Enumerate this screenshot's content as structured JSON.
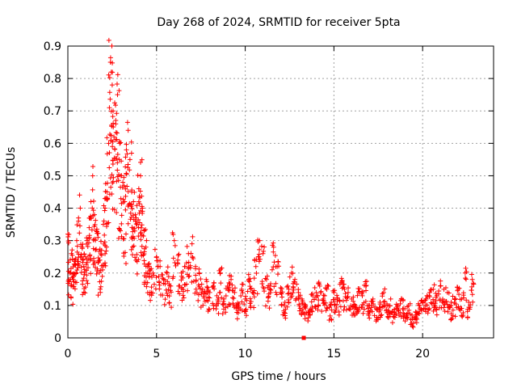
{
  "chart_data": {
    "type": "scatter",
    "title": "Day 268 of 2024, SRMTID for receiver 5pta",
    "xlabel": "GPS time / hours",
    "ylabel": "SRMTID / TECUs",
    "xlim": [
      0,
      24
    ],
    "ylim": [
      0,
      0.9
    ],
    "xticks": [
      0,
      5,
      10,
      15,
      20
    ],
    "xtick_labels": [
      "0",
      "5",
      "10",
      "15",
      "20"
    ],
    "yticks": [
      0,
      0.1,
      0.2,
      0.3,
      0.4,
      0.5,
      0.6,
      0.7,
      0.8,
      0.9
    ],
    "ytick_labels": [
      "0",
      "0.1",
      "0.2",
      "0.3",
      "0.4",
      "0.5",
      "0.6",
      "0.7",
      "0.8",
      "0.9"
    ],
    "grid": true,
    "marker": "plus",
    "marker_color": "#ff0000",
    "series": [
      {
        "name": "SRMTID",
        "x": [
          0.0,
          0.1,
          0.2,
          0.3,
          0.4,
          0.5,
          0.6,
          0.7,
          0.8,
          0.9,
          1.0,
          1.1,
          1.2,
          1.3,
          1.4,
          1.5,
          1.6,
          1.7,
          1.8,
          1.9,
          2.0,
          2.1,
          2.2,
          2.3,
          2.4,
          2.45,
          2.5,
          2.55,
          2.6,
          2.7,
          2.8,
          2.9,
          3.0,
          3.1,
          3.2,
          3.3,
          3.4,
          3.5,
          3.6,
          3.7,
          3.8,
          3.9,
          4.0,
          4.1,
          4.2,
          4.3,
          4.4,
          4.5,
          4.6,
          4.8,
          5.0,
          5.2,
          5.4,
          5.6,
          5.8,
          6.0,
          6.2,
          6.4,
          6.6,
          6.8,
          7.0,
          7.2,
          7.4,
          7.6,
          7.8,
          8.0,
          8.2,
          8.4,
          8.6,
          8.8,
          9.0,
          9.2,
          9.4,
          9.6,
          9.8,
          10.0,
          10.2,
          10.4,
          10.6,
          10.8,
          11.0,
          11.2,
          11.4,
          11.6,
          11.8,
          12.0,
          12.2,
          12.4,
          12.6,
          12.8,
          13.0,
          13.2,
          13.4,
          13.6,
          13.8,
          14.0,
          14.2,
          14.4,
          14.6,
          14.8,
          15.0,
          15.2,
          15.4,
          15.6,
          15.8,
          16.0,
          16.2,
          16.4,
          16.6,
          16.8,
          17.0,
          17.2,
          17.4,
          17.6,
          17.8,
          18.0,
          18.2,
          18.4,
          18.6,
          18.8,
          19.0,
          19.2,
          19.4,
          19.6,
          19.8,
          20.0,
          20.2,
          20.4,
          20.6,
          20.8,
          21.0,
          21.2,
          21.4,
          21.6,
          21.8,
          22.0,
          22.2,
          22.4,
          22.6,
          22.8
        ],
        "y": [
          0.32,
          0.2,
          0.26,
          0.18,
          0.24,
          0.3,
          0.36,
          0.4,
          0.28,
          0.22,
          0.25,
          0.3,
          0.34,
          0.42,
          0.5,
          0.38,
          0.33,
          0.31,
          0.24,
          0.27,
          0.35,
          0.4,
          0.45,
          0.6,
          0.85,
          0.82,
          0.78,
          0.7,
          0.62,
          0.66,
          0.75,
          0.55,
          0.5,
          0.48,
          0.42,
          0.58,
          0.64,
          0.55,
          0.45,
          0.42,
          0.38,
          0.35,
          0.46,
          0.5,
          0.4,
          0.33,
          0.28,
          0.22,
          0.19,
          0.2,
          0.25,
          0.22,
          0.18,
          0.2,
          0.16,
          0.3,
          0.24,
          0.2,
          0.22,
          0.26,
          0.29,
          0.22,
          0.2,
          0.15,
          0.18,
          0.14,
          0.16,
          0.13,
          0.2,
          0.12,
          0.16,
          0.18,
          0.14,
          0.1,
          0.15,
          0.12,
          0.18,
          0.14,
          0.22,
          0.3,
          0.26,
          0.18,
          0.16,
          0.28,
          0.22,
          0.14,
          0.1,
          0.16,
          0.2,
          0.18,
          0.14,
          0.12,
          0.1,
          0.08,
          0.13,
          0.14,
          0.16,
          0.12,
          0.15,
          0.1,
          0.14,
          0.12,
          0.17,
          0.15,
          0.14,
          0.12,
          0.1,
          0.14,
          0.13,
          0.16,
          0.1,
          0.12,
          0.09,
          0.11,
          0.14,
          0.1,
          0.12,
          0.08,
          0.1,
          0.12,
          0.09,
          0.1,
          0.07,
          0.08,
          0.1,
          0.11,
          0.12,
          0.14,
          0.15,
          0.13,
          0.16,
          0.15,
          0.14,
          0.1,
          0.12,
          0.15,
          0.12,
          0.2,
          0.11,
          0.18
        ]
      }
    ],
    "outlier": {
      "x": 13.3,
      "y": 0.0
    }
  }
}
